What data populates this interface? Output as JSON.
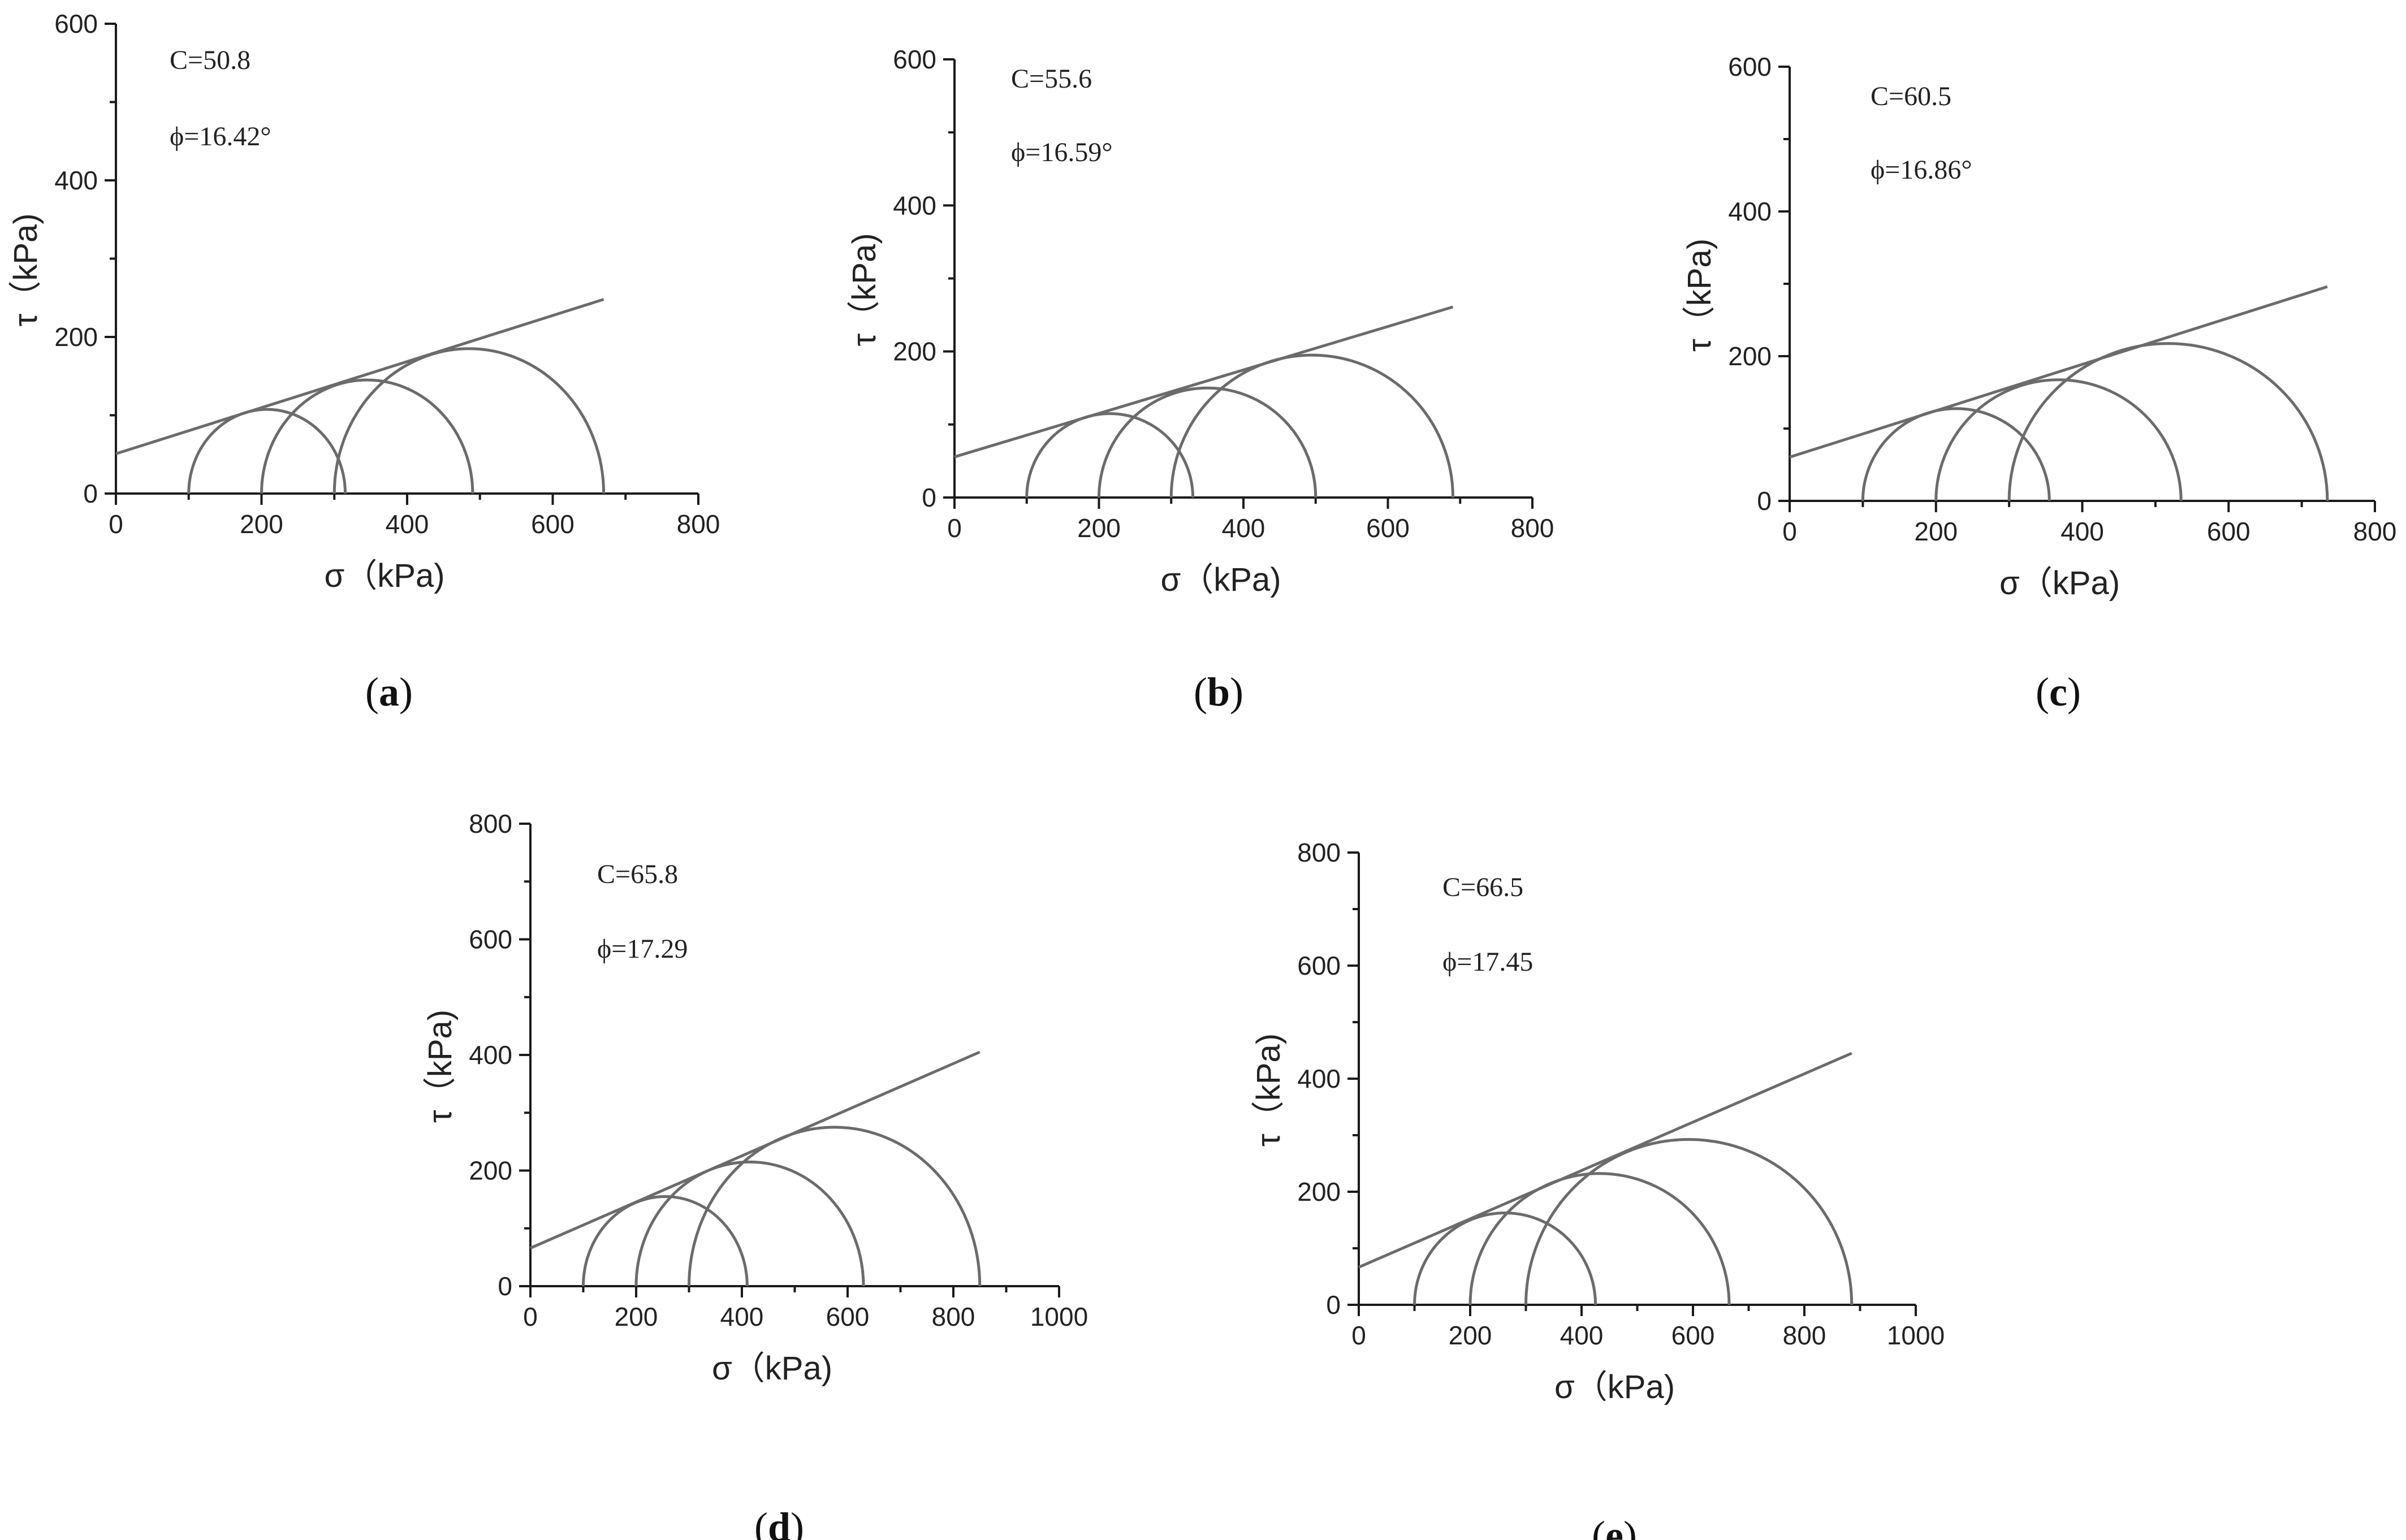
{
  "chart_data": [
    {
      "type": "line",
      "panel_label": "a",
      "title": "",
      "xlabel": "σ（kPa)",
      "ylabel": "τ（kPa)",
      "xlim": [
        0,
        800
      ],
      "ylim": [
        0,
        600
      ],
      "xticks": [
        0,
        200,
        400,
        600,
        800
      ],
      "yticks": [
        0,
        200,
        400,
        600
      ],
      "annotations": [
        "C=50.8",
        "ϕ=16.42°"
      ],
      "cohesion": 50.8,
      "friction_angle_deg": 16.42,
      "envelope": {
        "x": [
          0,
          670
        ],
        "y": [
          50.8,
          248
        ]
      },
      "circles": [
        {
          "sigma3": 100,
          "sigma1": 315
        },
        {
          "sigma3": 200,
          "sigma1": 490
        },
        {
          "sigma3": 300,
          "sigma1": 670
        }
      ],
      "grid": false
    },
    {
      "type": "line",
      "panel_label": "b",
      "title": "",
      "xlabel": "σ（kPa)",
      "ylabel": "τ（kPa)",
      "xlim": [
        0,
        800
      ],
      "ylim": [
        0,
        600
      ],
      "xticks": [
        0,
        200,
        400,
        600,
        800
      ],
      "yticks": [
        0,
        200,
        400,
        600
      ],
      "annotations": [
        "C=55.6",
        "ϕ=16.59°"
      ],
      "cohesion": 55.6,
      "friction_angle_deg": 16.59,
      "envelope": {
        "x": [
          0,
          690
        ],
        "y": [
          55.6,
          261
        ]
      },
      "circles": [
        {
          "sigma3": 100,
          "sigma1": 330
        },
        {
          "sigma3": 200,
          "sigma1": 500
        },
        {
          "sigma3": 300,
          "sigma1": 690
        }
      ],
      "grid": false
    },
    {
      "type": "line",
      "panel_label": "c",
      "title": "",
      "xlabel": "σ（kPa)",
      "ylabel": "τ（kPa)",
      "xlim": [
        0,
        800
      ],
      "ylim": [
        0,
        600
      ],
      "xticks": [
        0,
        200,
        400,
        600,
        800
      ],
      "yticks": [
        0,
        200,
        400,
        600
      ],
      "annotations": [
        "C=60.5",
        "ϕ=16.86°"
      ],
      "cohesion": 60.5,
      "friction_angle_deg": 16.86,
      "envelope": {
        "x": [
          0,
          735
        ],
        "y": [
          60.5,
          296
        ]
      },
      "circles": [
        {
          "sigma3": 100,
          "sigma1": 355
        },
        {
          "sigma3": 200,
          "sigma1": 535
        },
        {
          "sigma3": 300,
          "sigma1": 735
        }
      ],
      "grid": false
    },
    {
      "type": "line",
      "panel_label": "d",
      "title": "",
      "xlabel": "σ（kPa)",
      "ylabel": "τ（kPa)",
      "xlim": [
        0,
        1000
      ],
      "ylim": [
        0,
        800
      ],
      "xticks": [
        0,
        200,
        400,
        600,
        800,
        1000
      ],
      "yticks": [
        0,
        200,
        400,
        600,
        800
      ],
      "annotations": [
        "C=65.8",
        "ϕ=17.29"
      ],
      "cohesion": 65.8,
      "friction_angle_deg": 17.29,
      "envelope": {
        "x": [
          0,
          850
        ],
        "y": [
          65.8,
          405
        ]
      },
      "circles": [
        {
          "sigma3": 100,
          "sigma1": 410
        },
        {
          "sigma3": 200,
          "sigma1": 630
        },
        {
          "sigma3": 300,
          "sigma1": 850
        }
      ],
      "grid": false
    },
    {
      "type": "line",
      "panel_label": "e",
      "title": "",
      "xlabel": "σ（kPa)",
      "ylabel": "τ（kPa)",
      "xlim": [
        0,
        1000
      ],
      "ylim": [
        0,
        800
      ],
      "xticks": [
        0,
        200,
        400,
        600,
        800,
        1000
      ],
      "yticks": [
        0,
        200,
        400,
        600,
        800
      ],
      "annotations": [
        "C=66.5",
        "ϕ=17.45"
      ],
      "cohesion": 66.5,
      "friction_angle_deg": 17.45,
      "envelope": {
        "x": [
          0,
          885
        ],
        "y": [
          66.5,
          445
        ]
      },
      "circles": [
        {
          "sigma3": 100,
          "sigma1": 425
        },
        {
          "sigma3": 200,
          "sigma1": 665
        },
        {
          "sigma3": 300,
          "sigma1": 885
        }
      ],
      "grid": false
    }
  ]
}
